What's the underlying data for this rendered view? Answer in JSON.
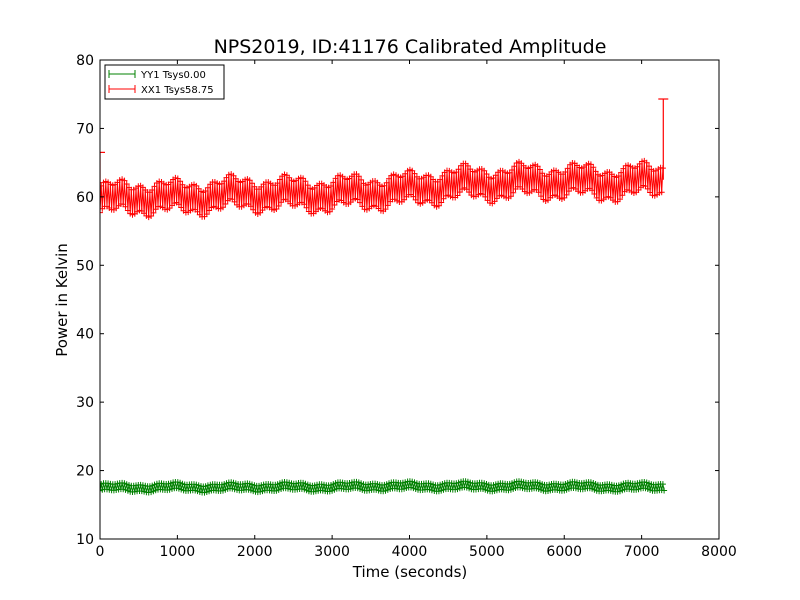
{
  "chart_data": {
    "type": "line",
    "title": "NPS2019, ID:41176 Calibrated Amplitude",
    "xlabel": "Time (seconds)",
    "ylabel": "Power in Kelvin",
    "xlim": [
      0,
      8000
    ],
    "ylim": [
      10,
      80
    ],
    "xticks": [
      0,
      1000,
      2000,
      3000,
      4000,
      5000,
      6000,
      7000,
      8000
    ],
    "yticks": [
      10,
      20,
      30,
      40,
      50,
      60,
      70,
      80
    ],
    "grid": false,
    "legend_position": "top-left",
    "markers": "plus",
    "series": [
      {
        "name": "YY1 Tsys0.00",
        "color": "#008000",
        "x": [
          0,
          500,
          1000,
          1500,
          2000,
          2500,
          3000,
          3500,
          4000,
          4500,
          5000,
          5500,
          6000,
          6500,
          7000,
          7300
        ],
        "y": [
          17.5,
          17.5,
          17.6,
          17.5,
          17.6,
          17.6,
          17.6,
          17.7,
          17.7,
          17.7,
          17.7,
          17.7,
          17.7,
          17.6,
          17.6,
          17.6
        ],
        "spread": 0.6
      },
      {
        "name": "XX1 Tsys58.75",
        "color": "#ff0000",
        "x": [
          0,
          500,
          1000,
          1500,
          2000,
          2500,
          3000,
          3500,
          4000,
          4500,
          5000,
          5500,
          6000,
          6500,
          7000,
          7280
        ],
        "y": [
          59.5,
          60.0,
          59.8,
          60.2,
          60.5,
          60.3,
          60.4,
          60.7,
          61.0,
          61.8,
          62.0,
          62.2,
          62.3,
          62.0,
          62.3,
          62.5
        ],
        "spread": 2.4,
        "outliers": [
          {
            "x": 7280,
            "y": 74.3
          },
          {
            "x": 0,
            "y": 66.5
          }
        ]
      }
    ]
  }
}
